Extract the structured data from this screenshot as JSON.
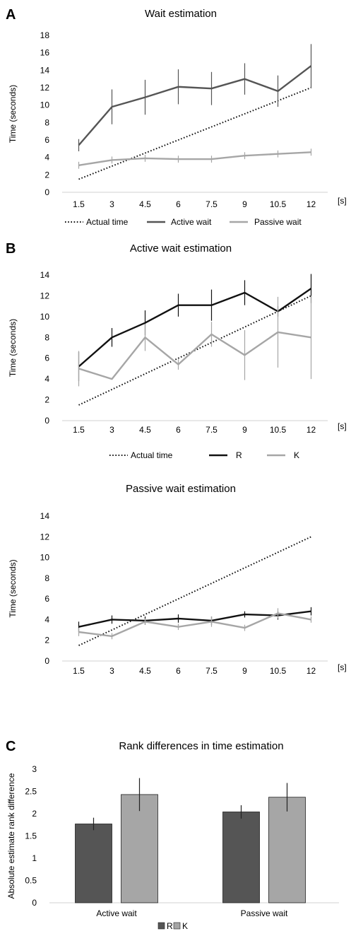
{
  "colors": {
    "dark": "#555555",
    "light": "#a6a6a6",
    "black": "#111111",
    "grid": "#d9d9d9"
  },
  "chart_data": [
    {
      "panel": "A",
      "type": "line",
      "title": "Wait estimation",
      "ylabel": "Time (seconds)",
      "xunit": "[s]",
      "categories": [
        "1.5",
        "3",
        "4.5",
        "6",
        "7.5",
        "9",
        "10.5",
        "12"
      ],
      "ylim": [
        0,
        18
      ],
      "yticks": [
        0,
        2,
        4,
        6,
        8,
        10,
        12,
        14,
        16,
        18
      ],
      "grid": false,
      "legend": "bottom",
      "series": [
        {
          "name": "Actual time",
          "style": "dotted",
          "color": "#111111",
          "values": [
            1.5,
            3,
            4.5,
            6,
            7.5,
            9,
            10.5,
            12
          ],
          "err": null
        },
        {
          "name": "Active wait",
          "style": "solid",
          "color": "#555555",
          "values": [
            5.4,
            9.8,
            10.9,
            12.1,
            11.9,
            13.0,
            11.6,
            14.5
          ],
          "err": [
            0.7,
            2.0,
            2.0,
            2.0,
            1.9,
            1.8,
            1.8,
            2.5
          ]
        },
        {
          "name": "Passive wait",
          "style": "solid",
          "color": "#a6a6a6",
          "values": [
            3.1,
            3.7,
            3.9,
            3.8,
            3.8,
            4.2,
            4.4,
            4.6
          ],
          "err": [
            0.4,
            0.4,
            0.4,
            0.4,
            0.4,
            0.4,
            0.4,
            0.4
          ]
        }
      ]
    },
    {
      "panel": "B",
      "type": "line",
      "title": "Active wait estimation",
      "ylabel": "Time (seconds)",
      "xunit": "[s]",
      "categories": [
        "1.5",
        "3",
        "4.5",
        "6",
        "7.5",
        "9",
        "10.5",
        "12"
      ],
      "ylim": [
        0,
        14
      ],
      "yticks": [
        0,
        2,
        4,
        6,
        8,
        10,
        12,
        14
      ],
      "grid": false,
      "legend": "bottom",
      "series": [
        {
          "name": "Actual time",
          "style": "dotted",
          "color": "#111111",
          "values": [
            1.5,
            3,
            4.5,
            6,
            7.5,
            9,
            10.5,
            12
          ],
          "err": null
        },
        {
          "name": "R",
          "style": "solid",
          "color": "#111111",
          "values": [
            5.2,
            8.0,
            9.4,
            11.1,
            11.1,
            12.3,
            10.5,
            12.7
          ],
          "err": [
            1.4,
            0.9,
            1.2,
            1.1,
            1.5,
            1.2,
            0.5,
            1.4
          ]
        },
        {
          "name": "K",
          "style": "solid",
          "color": "#a6a6a6",
          "values": [
            5.0,
            4.0,
            8.0,
            5.4,
            8.3,
            6.3,
            8.5,
            8.0
          ],
          "err": [
            1.7,
            0.0,
            1.3,
            0.5,
            1.2,
            2.4,
            3.4,
            4.0
          ]
        }
      ]
    },
    {
      "panel": "",
      "type": "line",
      "title": "Passive wait estimation",
      "ylabel": "Time (seconds)",
      "xunit": "[s]",
      "categories": [
        "1.5",
        "3",
        "4.5",
        "6",
        "7.5",
        "9",
        "10.5",
        "12"
      ],
      "ylim": [
        0,
        14
      ],
      "yticks": [
        0,
        2,
        4,
        6,
        8,
        10,
        12,
        14
      ],
      "grid": false,
      "legend": "none",
      "series": [
        {
          "name": "Actual time",
          "style": "dotted",
          "color": "#111111",
          "values": [
            1.5,
            3,
            4.5,
            6,
            7.5,
            9,
            10.5,
            12
          ],
          "err": null,
          "legend": false
        },
        {
          "name": "R",
          "style": "solid",
          "color": "#111111",
          "values": [
            3.3,
            4.0,
            3.9,
            4.1,
            3.9,
            4.5,
            4.4,
            4.8
          ],
          "err": [
            0.5,
            0.4,
            0.4,
            0.4,
            0.4,
            0.3,
            0.4,
            0.4
          ],
          "legend": false
        },
        {
          "name": "K",
          "style": "solid",
          "color": "#a6a6a6",
          "values": [
            2.8,
            2.4,
            3.8,
            3.3,
            3.8,
            3.2,
            4.6,
            4.0
          ],
          "err": [
            0.4,
            0.3,
            0.3,
            0.3,
            0.5,
            0.3,
            0.5,
            0.3
          ],
          "legend": false
        }
      ]
    },
    {
      "panel": "C",
      "type": "bar",
      "title": "Rank differences in time estimation",
      "ylabel": "Absolute estimate rank difference",
      "categories": [
        "Active wait",
        "Passive wait"
      ],
      "ylim": [
        0,
        3
      ],
      "yticks": [
        0,
        0.5,
        1,
        1.5,
        2,
        2.5,
        3
      ],
      "grid": false,
      "legend": "bottom",
      "series": [
        {
          "name": "R",
          "color": "#555555",
          "values": [
            1.77,
            2.04
          ],
          "err": [
            0.14,
            0.15
          ]
        },
        {
          "name": "K",
          "color": "#a6a6a6",
          "values": [
            2.43,
            2.37
          ],
          "err": [
            0.37,
            0.32
          ]
        }
      ]
    }
  ]
}
